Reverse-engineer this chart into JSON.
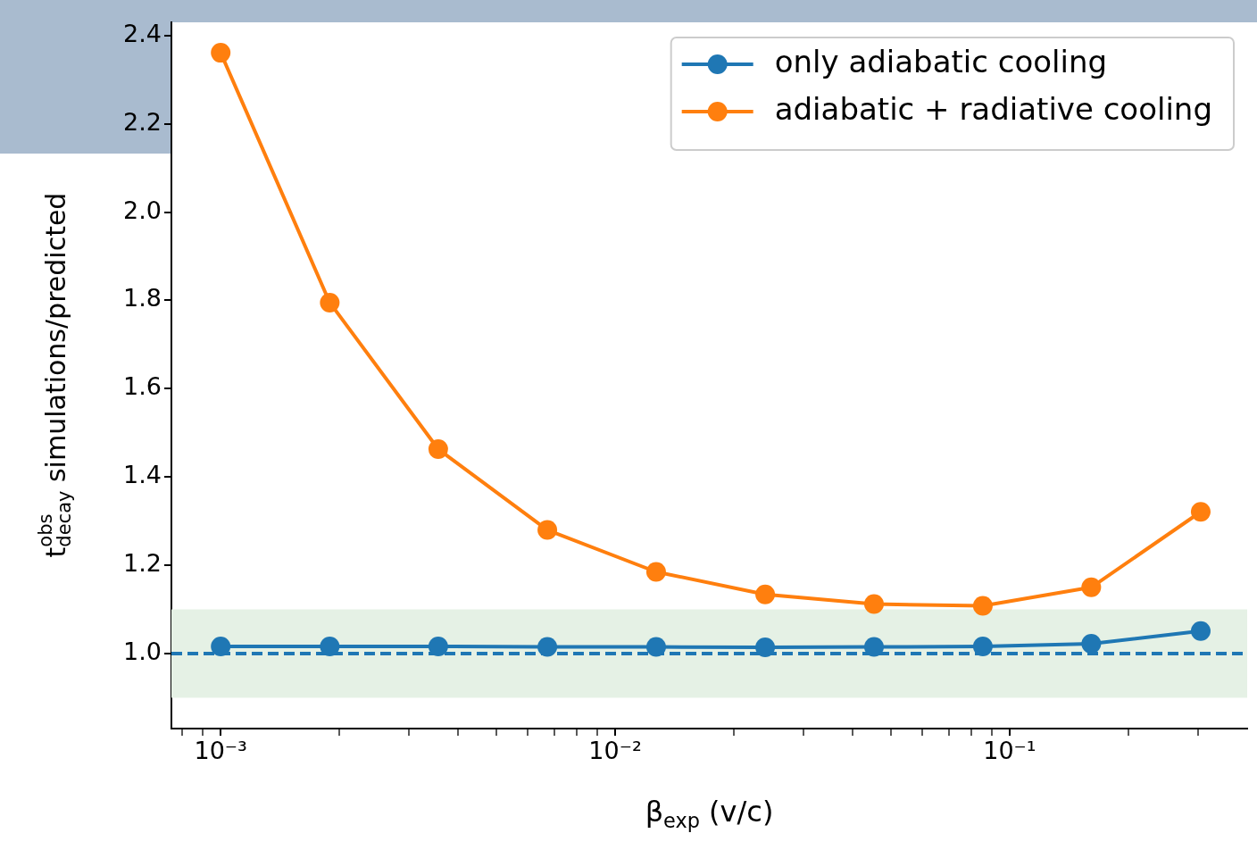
{
  "chart_data": {
    "type": "line",
    "xlabel": "β$_{exp}$ (v/c)",
    "ylabel": "t$^{obs}$$_{decay}$ simulations/predicted",
    "x": [
      0.001,
      0.00189,
      0.00356,
      0.00673,
      0.0127,
      0.024,
      0.0453,
      0.0855,
      0.161,
      0.305
    ],
    "series": [
      {
        "name": "only adiabatic cooling",
        "color": "#1f77b4",
        "values": [
          1.016,
          1.016,
          1.016,
          1.015,
          1.015,
          1.014,
          1.015,
          1.016,
          1.022,
          1.051
        ]
      },
      {
        "name": "adiabatic + radiative cooling",
        "color": "#ff7f0e",
        "values": [
          2.361,
          1.795,
          1.463,
          1.28,
          1.185,
          1.134,
          1.112,
          1.108,
          1.15,
          1.321
        ]
      }
    ],
    "log": "x",
    "xlim": [
      0.00075,
      0.4
    ],
    "ylim": [
      0.83,
      2.43
    ],
    "xticks": [
      {
        "value": 0.0008,
        "label": null
      },
      {
        "value": 0.0009,
        "label": null
      },
      {
        "value": 0.001,
        "label": "10⁻³"
      },
      {
        "value": 0.002,
        "label": null
      },
      {
        "value": 0.003,
        "label": null
      },
      {
        "value": 0.004,
        "label": null
      },
      {
        "value": 0.005,
        "label": null
      },
      {
        "value": 0.006,
        "label": null
      },
      {
        "value": 0.007,
        "label": null
      },
      {
        "value": 0.008,
        "label": null
      },
      {
        "value": 0.009,
        "label": null
      },
      {
        "value": 0.01,
        "label": "10⁻²"
      },
      {
        "value": 0.02,
        "label": null
      },
      {
        "value": 0.03,
        "label": null
      },
      {
        "value": 0.04,
        "label": null
      },
      {
        "value": 0.05,
        "label": null
      },
      {
        "value": 0.06,
        "label": null
      },
      {
        "value": 0.07,
        "label": null
      },
      {
        "value": 0.08,
        "label": null
      },
      {
        "value": 0.09,
        "label": null
      },
      {
        "value": 0.1,
        "label": "10⁻¹"
      },
      {
        "value": 0.2,
        "label": null
      },
      {
        "value": 0.3,
        "label": null
      }
    ],
    "yticks": [
      {
        "value": 1,
        "label": "1.0"
      },
      {
        "value": 1.2,
        "label": "1.2"
      },
      {
        "value": 1.4,
        "label": "1.4"
      },
      {
        "value": 1.6,
        "label": "1.6"
      },
      {
        "value": 1.8,
        "label": "1.8"
      },
      {
        "value": 2,
        "label": "2.0"
      },
      {
        "value": 2.2,
        "label": "2.2"
      },
      {
        "value": 2.4,
        "label": "2.4"
      }
    ],
    "ref_lines": [
      {
        "axis": "y",
        "value": 1,
        "color": "#1f77b4",
        "line_style": "dashed"
      }
    ],
    "bands": [
      {
        "axis": "y",
        "from": 0.9,
        "to": 1.1,
        "color": "#e5f1e5"
      }
    ],
    "grid": false,
    "legend": "top right",
    "marker": "circle",
    "line_style": "solid"
  }
}
